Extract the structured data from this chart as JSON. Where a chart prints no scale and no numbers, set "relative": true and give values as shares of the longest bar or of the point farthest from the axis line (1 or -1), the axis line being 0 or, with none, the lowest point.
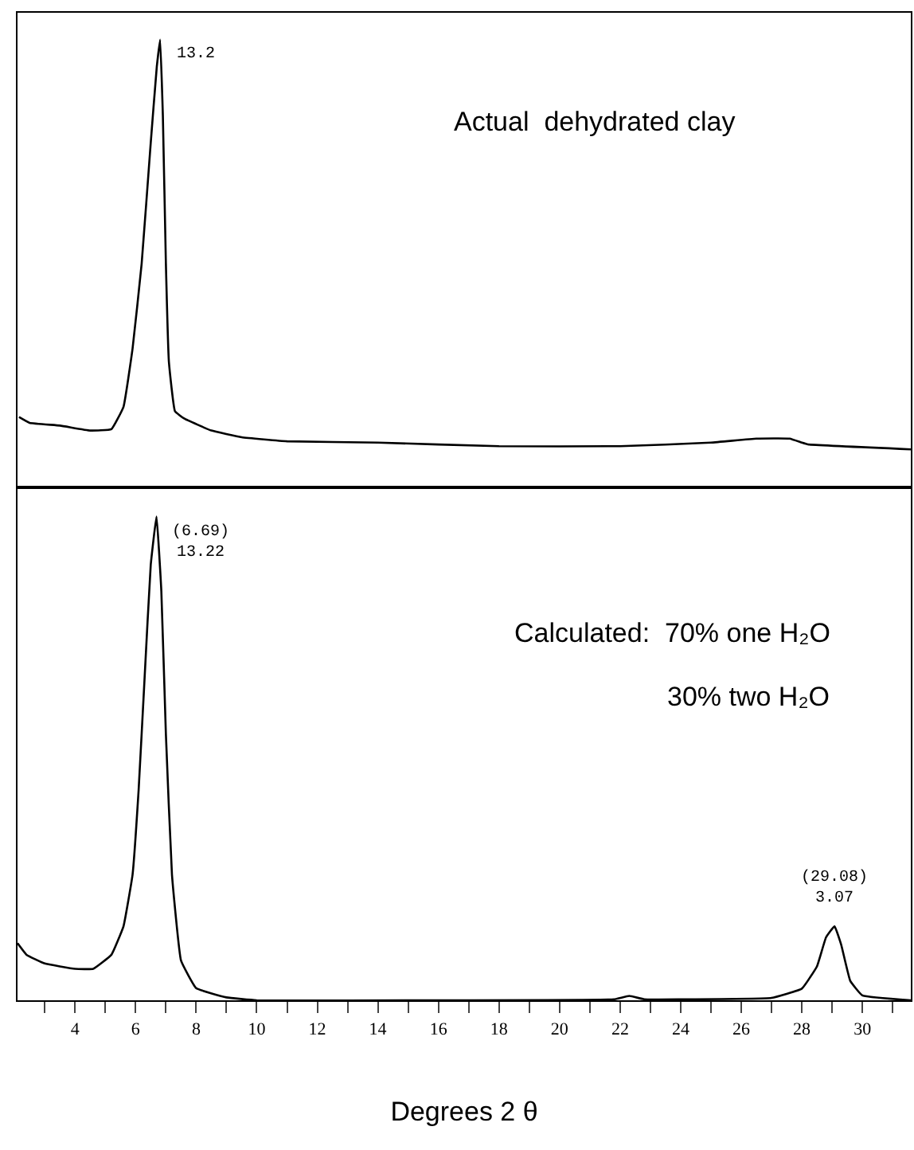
{
  "chart_data": [
    {
      "type": "line",
      "relative": true,
      "xlim": [
        2.1,
        31.6
      ],
      "tick_labels": false,
      "series": [
        {
          "color": "#000000",
          "x": [
            2.15,
            2.5,
            3.5,
            4.5,
            5.2,
            5.6,
            5.9,
            6.2,
            6.5,
            6.7,
            6.81,
            6.9,
            7.0,
            7.1,
            7.3,
            7.6,
            8.5,
            9.5,
            11,
            14,
            18,
            22,
            25,
            26.5,
            27.6,
            28.0,
            28.2,
            31.6
          ],
          "values": [
            0.157,
            0.144,
            0.138,
            0.127,
            0.13,
            0.18,
            0.31,
            0.5,
            0.77,
            0.94,
            1.0,
            0.83,
            0.5,
            0.28,
            0.17,
            0.154,
            0.127,
            0.112,
            0.103,
            0.1,
            0.092,
            0.092,
            0.1,
            0.109,
            0.109,
            0.1,
            0.096,
            0.085
          ]
        }
      ],
      "annotations": [
        {
          "text": "13.2",
          "x": 6.81,
          "y": 1.0
        },
        "Actual  dehydrated clay"
      ]
    },
    {
      "type": "line",
      "relative": true,
      "xlim": [
        2.1,
        31.6
      ],
      "tick_labels": "x",
      "xlabel": "Degrees 2 θ",
      "xticks": [
        {
          "value": 3,
          "label": null
        },
        4,
        {
          "value": 5,
          "label": null
        },
        6,
        {
          "value": 7,
          "label": null
        },
        8,
        {
          "value": 9,
          "label": null
        },
        10,
        {
          "value": 11,
          "label": null
        },
        12,
        {
          "value": 13,
          "label": null
        },
        14,
        {
          "value": 15,
          "label": null
        },
        16,
        {
          "value": 17,
          "label": null
        },
        18,
        {
          "value": 19,
          "label": null
        },
        20,
        {
          "value": 21,
          "label": null
        },
        22,
        {
          "value": 23,
          "label": null
        },
        24,
        {
          "value": 25,
          "label": null
        },
        26,
        {
          "value": 27,
          "label": null
        },
        28,
        {
          "value": 29,
          "label": null
        },
        30,
        {
          "value": 31,
          "label": null
        }
      ],
      "series": [
        {
          "color": "#000000",
          "x": [
            2.1,
            2.4,
            3,
            4,
            4.6,
            5.2,
            5.6,
            5.9,
            6.1,
            6.3,
            6.5,
            6.69,
            6.85,
            7.0,
            7.2,
            7.5,
            8.0,
            9,
            10,
            16,
            21.8,
            22.3,
            22.8,
            24,
            27,
            28.0,
            28.5,
            28.8,
            29.08,
            29.3,
            29.6,
            30.0,
            31.6
          ],
          "values": [
            0.118,
            0.094,
            0.076,
            0.065,
            0.065,
            0.094,
            0.153,
            0.26,
            0.435,
            0.67,
            0.9,
            1.0,
            0.845,
            0.55,
            0.26,
            0.082,
            0.025,
            0.006,
            0.0,
            0.0,
            0.002,
            0.009,
            0.002,
            0.002,
            0.005,
            0.024,
            0.07,
            0.13,
            0.153,
            0.115,
            0.04,
            0.01,
            0.0
          ]
        }
      ],
      "annotations": [
        {
          "text": "(6.69)\n13.22",
          "x": 6.69,
          "y": 1.0
        },
        {
          "text": "(29.08)\n3.07",
          "x": 29.08,
          "y": 0.153
        },
        "Calculated:  70% one H₂O",
        "30% two H₂O"
      ]
    }
  ]
}
